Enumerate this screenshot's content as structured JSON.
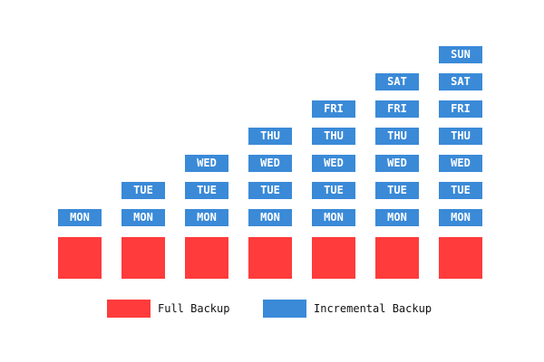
{
  "colors": {
    "full": "#ff3b3b",
    "incremental": "#3a8ad8",
    "text_on_incremental": "#ffffff"
  },
  "columns": [
    {
      "full": true,
      "incrementals": [
        "MON"
      ]
    },
    {
      "full": true,
      "incrementals": [
        "MON",
        "TUE"
      ]
    },
    {
      "full": true,
      "incrementals": [
        "MON",
        "TUE",
        "WED"
      ]
    },
    {
      "full": true,
      "incrementals": [
        "MON",
        "TUE",
        "WED",
        "THU"
      ]
    },
    {
      "full": true,
      "incrementals": [
        "MON",
        "TUE",
        "WED",
        "THU",
        "FRI"
      ]
    },
    {
      "full": true,
      "incrementals": [
        "MON",
        "TUE",
        "WED",
        "THU",
        "FRI",
        "SAT"
      ]
    },
    {
      "full": true,
      "incrementals": [
        "MON",
        "TUE",
        "WED",
        "THU",
        "FRI",
        "SAT",
        "SUN"
      ]
    }
  ],
  "legend": {
    "full_label": "Full Backup",
    "incremental_label": "Incremental Backup"
  }
}
